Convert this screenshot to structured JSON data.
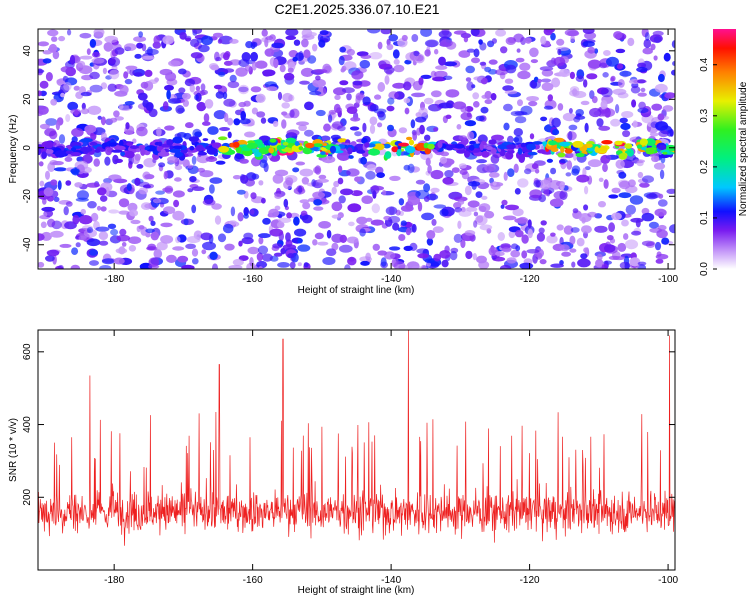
{
  "title": "C2E1.2025.336.07.10.E21",
  "chart_data": [
    {
      "type": "heatmap",
      "xlabel": "Height of straight line (km)",
      "ylabel": "Frequency (Hz)",
      "xlim": [
        -191,
        -99
      ],
      "ylim": [
        -50,
        49
      ],
      "xticks": [
        -180,
        -160,
        -140,
        -120,
        -100
      ],
      "yticks": [
        -40,
        -20,
        0,
        20,
        40
      ],
      "colorbar": {
        "label": "Normalized spectral amplitude",
        "range": [
          0,
          0.47
        ],
        "ticks": [
          0.0,
          0.1,
          0.2,
          0.3,
          0.4
        ]
      },
      "signal_band_hz": 0,
      "signal_segments_km": [
        [
          -165,
          -147
        ],
        [
          -143,
          -134
        ],
        [
          -118,
          -99
        ]
      ]
    },
    {
      "type": "line",
      "xlabel": "Height of straight line (km)",
      "ylabel": "SNR (10 * v/v)",
      "xlim": [
        -191,
        -99
      ],
      "ylim": [
        0,
        660
      ],
      "xticks": [
        -180,
        -160,
        -140,
        -120,
        -100
      ],
      "yticks": [
        200,
        400,
        600
      ],
      "baseline_mean": 160,
      "noise_spread": 75,
      "peaks": [
        {
          "x": -155.6,
          "y": 635
        },
        {
          "x": -137.5,
          "y": 660
        },
        {
          "x": -99.8,
          "y": 645
        },
        {
          "x": -164.8,
          "y": 565
        },
        {
          "x": -183.5,
          "y": 535
        }
      ],
      "color": "#ee2020"
    }
  ]
}
